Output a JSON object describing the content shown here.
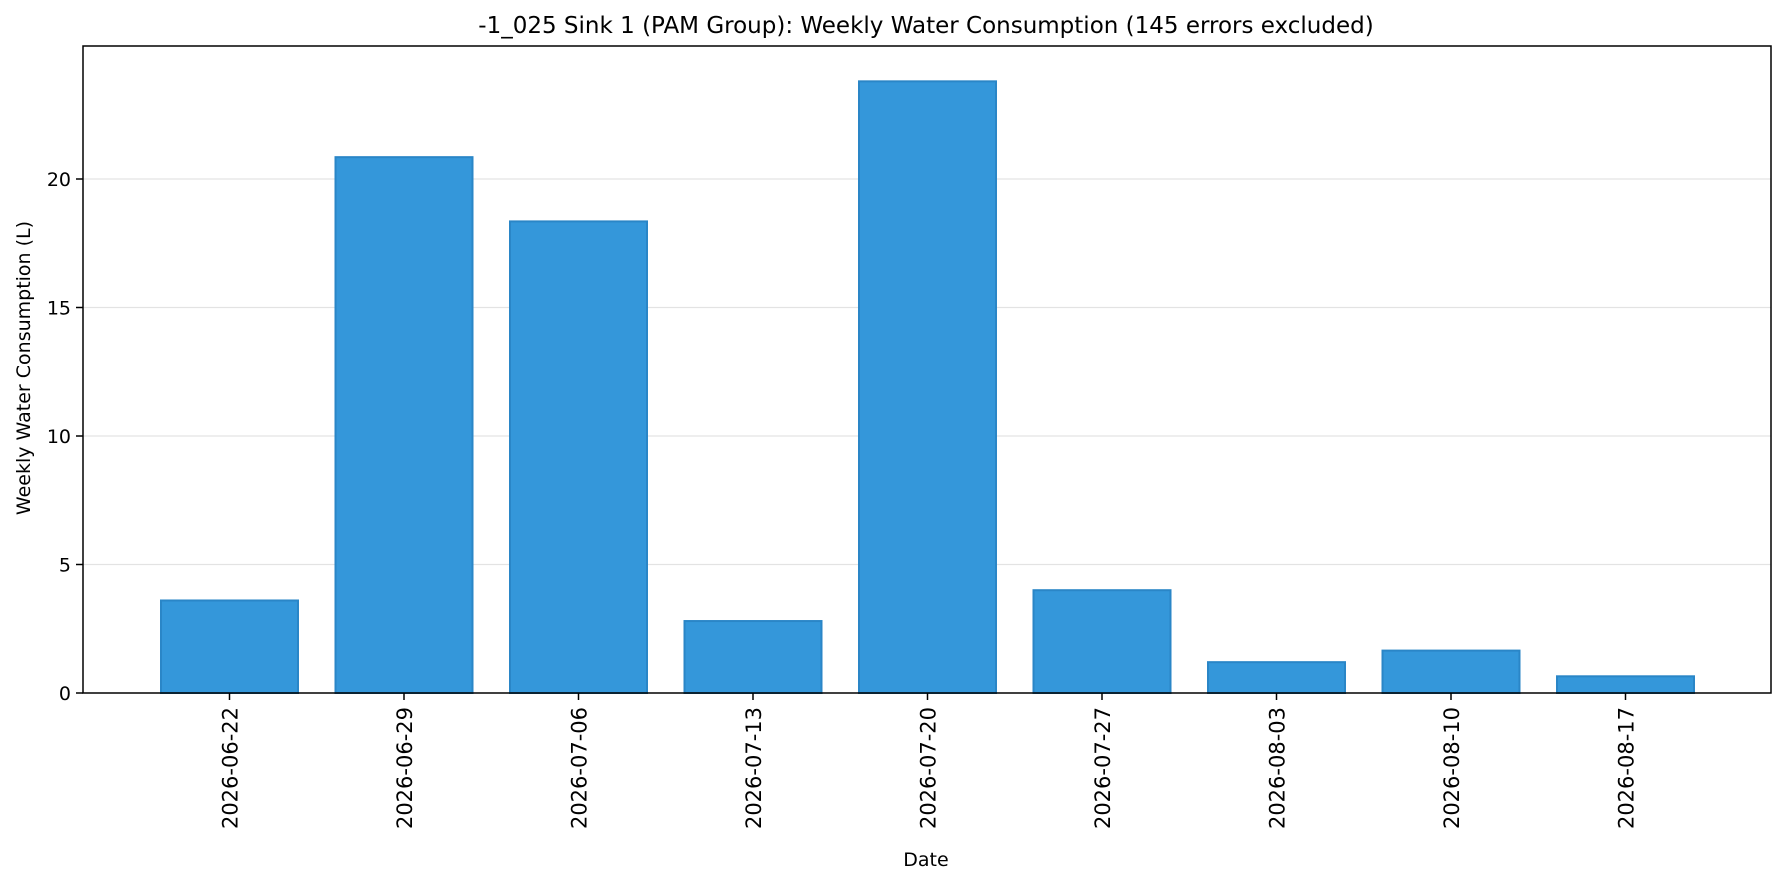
{
  "chart_data": {
    "type": "bar",
    "title": "-1_025 Sink 1 (PAM Group): Weekly Water Consumption (145 errors excluded)",
    "xlabel": "Date",
    "ylabel": "Weekly Water Consumption (L)",
    "categories": [
      "2026-06-22",
      "2026-06-29",
      "2026-07-06",
      "2026-07-13",
      "2026-07-20",
      "2026-07-27",
      "2026-08-03",
      "2026-08-10",
      "2026-08-17"
    ],
    "values": [
      3.6,
      20.85,
      18.35,
      2.8,
      23.8,
      4.0,
      1.2,
      1.65,
      0.65
    ],
    "ylim": [
      0,
      25
    ],
    "yticks": [
      0,
      5,
      10,
      15,
      20
    ],
    "grid": "y-axis only",
    "colors": {
      "bar_fill": "#3497da",
      "bar_edge": "#2a86c7"
    }
  }
}
